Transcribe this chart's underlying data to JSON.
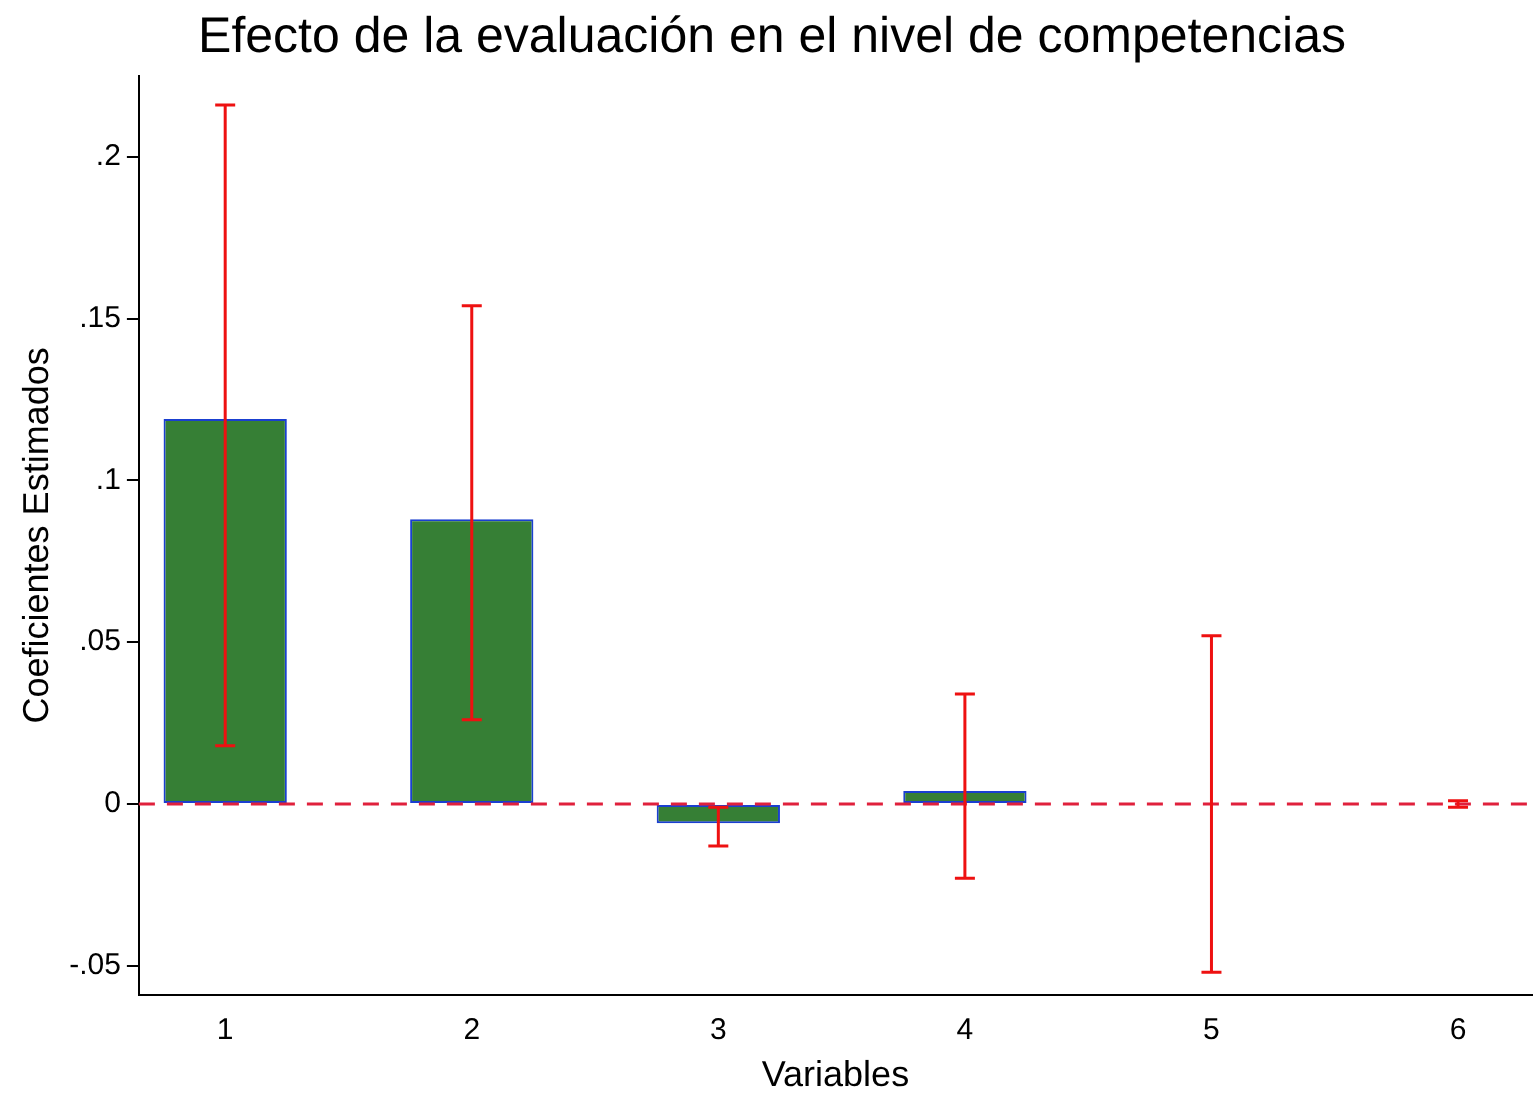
{
  "chart_data": {
    "type": "bar",
    "title": "Efecto de la evaluación en el nivel de competencias",
    "xlabel": "Variables",
    "ylabel": "Coeficientes Estimados",
    "x": [
      1,
      2,
      3,
      4,
      5,
      6
    ],
    "series": [
      {
        "color": "#367f35",
        "values": [
          0.119,
          0.088,
          -0.006,
          0.004,
          0,
          0
        ],
        "errors": [
          [
            0.018,
            0.216
          ],
          [
            0.026,
            0.154
          ],
          [
            -0.013,
            -0.001
          ],
          [
            -0.023,
            0.034
          ],
          [
            -0.052,
            0.052
          ],
          [
            -0.001,
            0.001
          ]
        ]
      }
    ],
    "xlim": [
      0.65,
      6.3
    ],
    "xticks": [
      1,
      2,
      3,
      4,
      5,
      6
    ],
    "ylim": [
      -0.059,
      0.225
    ],
    "yticks": [
      {
        "value": -0.05,
        "label": "-.05"
      },
      0,
      {
        "value": 0.05,
        "label": ".05"
      },
      {
        "value": 0.1,
        "label": ".1"
      },
      {
        "value": 0.15,
        "label": ".15"
      },
      {
        "value": 0.2,
        "label": ".2"
      }
    ],
    "ref_lines": [
      {
        "axis": "y",
        "value": 0,
        "color": "#e0203c",
        "line_style": "dashed"
      }
    ],
    "grid": false,
    "legend": false
  }
}
